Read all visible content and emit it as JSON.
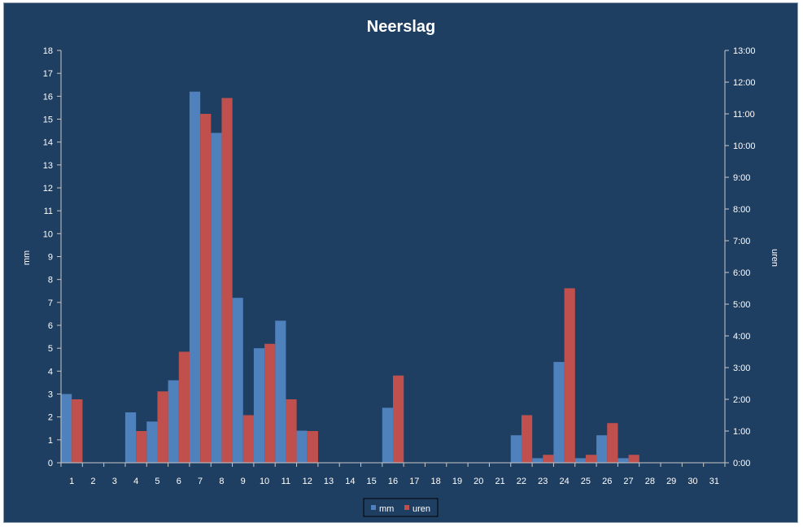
{
  "chart_data": {
    "type": "bar",
    "title": "Neerslag",
    "xlabel": "",
    "ylabel_left": "mm",
    "ylabel_right": "uren",
    "categories": [
      "1",
      "2",
      "3",
      "4",
      "5",
      "6",
      "7",
      "8",
      "9",
      "10",
      "11",
      "12",
      "13",
      "14",
      "15",
      "16",
      "17",
      "18",
      "19",
      "20",
      "21",
      "22",
      "23",
      "24",
      "25",
      "26",
      "27",
      "28",
      "29",
      "30",
      "31"
    ],
    "ylim_left": [
      0,
      18
    ],
    "ylim_right": [
      0,
      13
    ],
    "yticks_left": [
      "0",
      "1",
      "2",
      "3",
      "4",
      "5",
      "6",
      "7",
      "8",
      "9",
      "10",
      "11",
      "12",
      "13",
      "14",
      "15",
      "16",
      "17",
      "18"
    ],
    "yticks_right": [
      "0:00",
      "1:00",
      "2:00",
      "3:00",
      "4:00",
      "5:00",
      "6:00",
      "7:00",
      "8:00",
      "9:00",
      "10:00",
      "11:00",
      "12:00",
      "13:00"
    ],
    "series": [
      {
        "name": "mm",
        "axis": "left",
        "color": "#4f81bd",
        "values": [
          3.0,
          0,
          0,
          2.2,
          1.8,
          3.6,
          16.2,
          14.4,
          7.2,
          5.0,
          6.2,
          1.4,
          0,
          0,
          0,
          2.4,
          0,
          0,
          0,
          0,
          0,
          1.2,
          0.2,
          4.4,
          0.2,
          1.2,
          0.2,
          0,
          0,
          0,
          0
        ]
      },
      {
        "name": "uren",
        "axis": "right",
        "color": "#c0504d",
        "values": [
          2.0,
          0,
          0,
          1.0,
          2.25,
          3.5,
          11.0,
          11.5,
          1.5,
          3.75,
          2.0,
          1.0,
          0,
          0,
          0,
          2.75,
          0,
          0,
          0,
          0,
          0,
          1.5,
          0.25,
          5.5,
          0.25,
          1.25,
          0.25,
          0,
          0,
          0,
          0
        ]
      }
    ],
    "legend": "bottom"
  }
}
